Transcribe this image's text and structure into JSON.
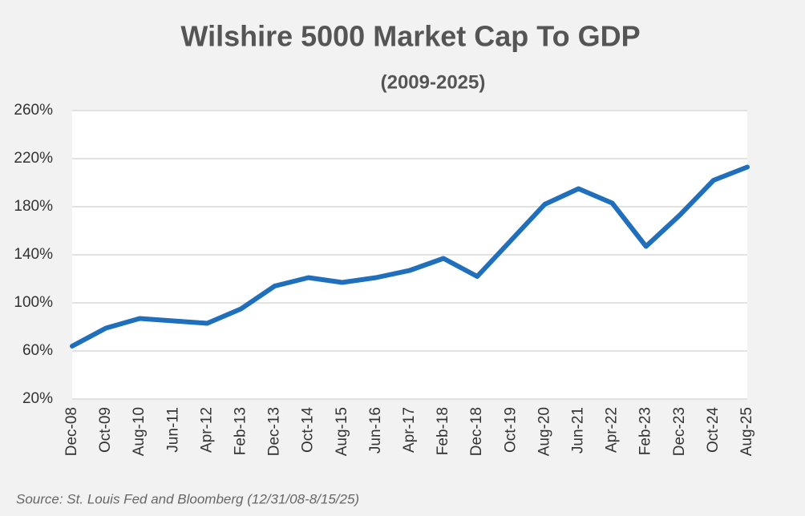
{
  "chart_data": {
    "type": "line",
    "title": "Wilshire 5000 Market Cap To GDP",
    "subtitle": "(2009-2025)",
    "source": "Source: St. Louis Fed and Bloomberg (12/31/08-8/15/25)",
    "categories": [
      "Dec-08",
      "Oct-09",
      "Aug-10",
      "Jun-11",
      "Apr-12",
      "Feb-13",
      "Dec-13",
      "Oct-14",
      "Aug-15",
      "Jun-16",
      "Apr-17",
      "Feb-18",
      "Dec-18",
      "Oct-19",
      "Aug-20",
      "Jun-21",
      "Apr-22",
      "Feb-23",
      "Dec-23",
      "Oct-24",
      "Aug-25"
    ],
    "values": [
      64,
      79,
      87,
      85,
      83,
      95,
      114,
      121,
      117,
      121,
      127,
      137,
      122,
      152,
      182,
      195,
      183,
      147,
      173,
      202,
      213
    ],
    "color": "#1f6fbd",
    "ylim": [
      20,
      260
    ],
    "yticks": [
      {
        "value": 20,
        "label": "20%"
      },
      {
        "value": 60,
        "label": "60%"
      },
      {
        "value": 100,
        "label": "100%"
      },
      {
        "value": 140,
        "label": "140%"
      },
      {
        "value": 180,
        "label": "180%"
      },
      {
        "value": 220,
        "label": "220%"
      },
      {
        "value": 260,
        "label": "260%"
      }
    ],
    "grid": true
  }
}
